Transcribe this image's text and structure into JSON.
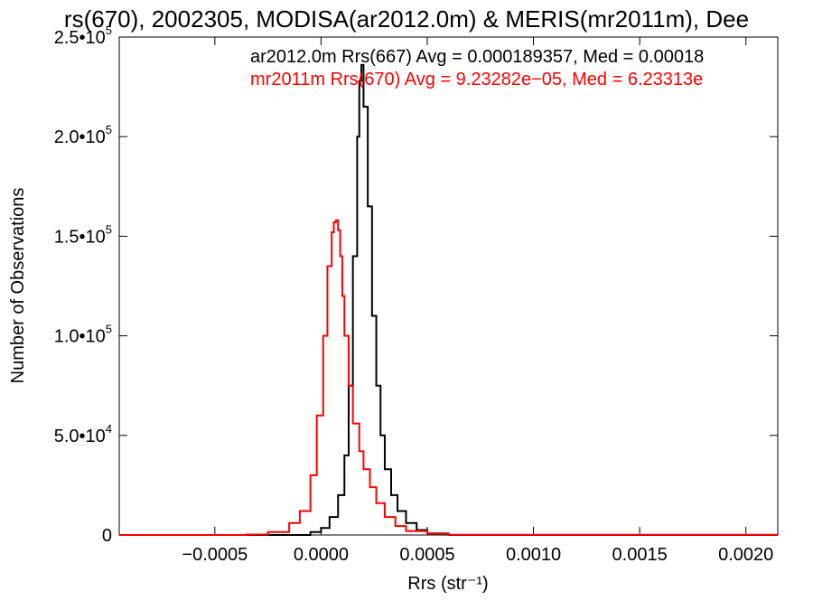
{
  "chart_data": {
    "type": "line",
    "title": "rs(670), 2002305, MODISA(ar2012.0m) & MERIS(mr2011m), Dee",
    "xlabel": "Rrs (str⁻¹)",
    "ylabel": "Number of Observations",
    "xlim": [
      -0.00095,
      0.00215
    ],
    "ylim": [
      0,
      250000
    ],
    "xticks": [
      -0.0005,
      0.0,
      0.0005,
      0.001,
      0.0015,
      0.002
    ],
    "xtick_labels": [
      "−0.0005",
      "0.0000",
      "0.0005",
      "0.0010",
      "0.0015",
      "0.0020"
    ],
    "yticks": [
      0,
      50000,
      100000,
      150000,
      200000,
      250000
    ],
    "ytick_labels": [
      {
        "mant": "0",
        "exp": ""
      },
      {
        "mant": "5.0•10",
        "exp": "4"
      },
      {
        "mant": "1.0•10",
        "exp": "5"
      },
      {
        "mant": "1.5•10",
        "exp": "5"
      },
      {
        "mant": "2.0•10",
        "exp": "5"
      },
      {
        "mant": "2.5•10",
        "exp": "5"
      }
    ],
    "grid": false,
    "legend_placement": "top-right",
    "series": [
      {
        "name": "ar2012.0m Rrs(667) Avg = 0.000189357, Med = 0.00018",
        "color": "#000000",
        "style": "step",
        "x": [
          -0.00095,
          -0.0001,
          -5e-05,
          0.0,
          4e-05,
          8e-05,
          0.00011,
          0.00013,
          0.00015,
          0.00017,
          0.00018,
          0.00019,
          0.0002,
          0.00022,
          0.00024,
          0.00026,
          0.00028,
          0.0003,
          0.00033,
          0.00036,
          0.0004,
          0.00045,
          0.0005,
          0.0006,
          0.00215
        ],
        "values": [
          0,
          0,
          1500,
          3500,
          9000,
          20000,
          40000,
          75000,
          140000,
          200000,
          228000,
          236000,
          215000,
          165000,
          110000,
          75000,
          50000,
          33000,
          20000,
          12000,
          6000,
          2500,
          800,
          0,
          0
        ]
      },
      {
        "name": "mr2011m Rrs(670) Avg = 9.23282e−05, Med = 6.23313e",
        "color": "#ff0000",
        "style": "step",
        "x": [
          -0.00095,
          -0.00035,
          -0.00025,
          -0.00015,
          -0.0001,
          -5e-05,
          -2e-05,
          1e-05,
          3e-05,
          5e-05,
          6e-05,
          7e-05,
          8e-05,
          9e-05,
          0.0001,
          0.00011,
          0.00013,
          0.00015,
          0.00018,
          0.0002,
          0.00023,
          0.00026,
          0.0003,
          0.00035,
          0.0004,
          0.0005,
          0.0006,
          0.00215
        ],
        "values": [
          0,
          200,
          1500,
          6000,
          12000,
          30000,
          60000,
          100000,
          135000,
          152000,
          157000,
          158000,
          153000,
          140000,
          120000,
          100000,
          75000,
          56000,
          42000,
          33000,
          24000,
          16000,
          9000,
          4500,
          2000,
          600,
          100,
          0
        ]
      }
    ]
  }
}
